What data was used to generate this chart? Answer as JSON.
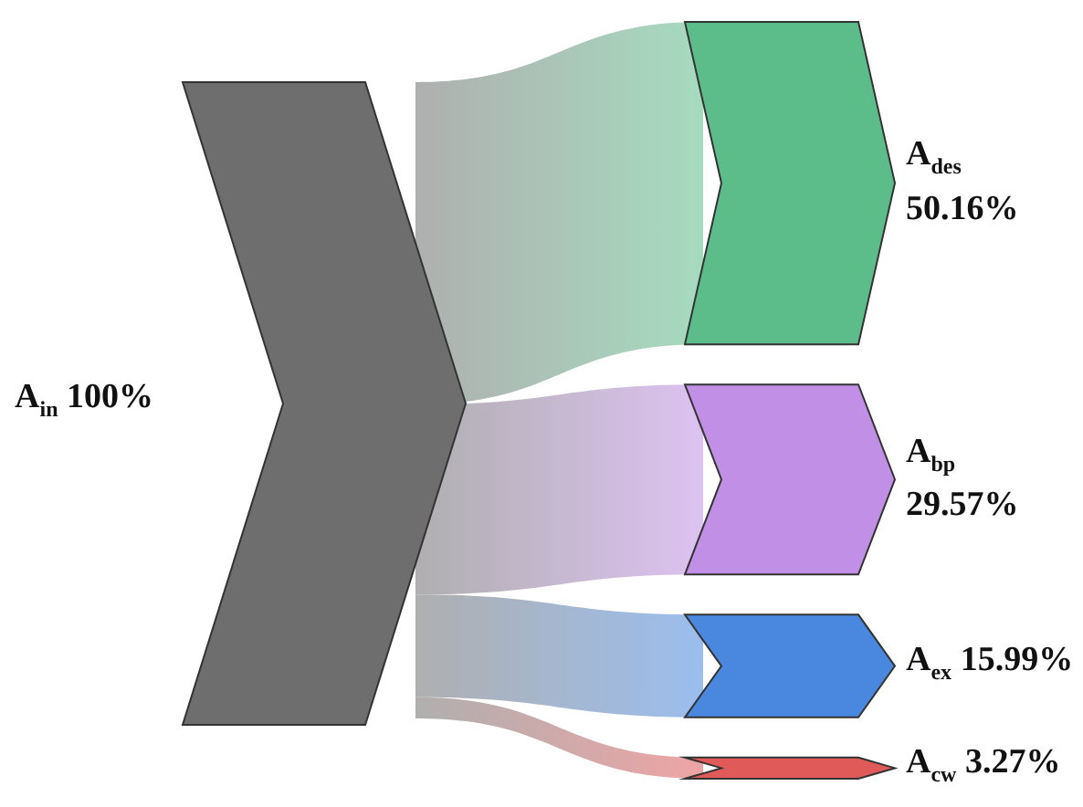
{
  "chart_data": {
    "type": "other",
    "categories": [
      "A$_{in}$",
      "A$_{des}$",
      "A$_{bp}$",
      "A$_{ex}$",
      "A$_{cw}$"
    ],
    "values": [
      100,
      50.16,
      29.57,
      15.99,
      3.27
    ],
    "value_labels": [
      "100%",
      "50.16%",
      "29.57%",
      "15.99%",
      "3.27%"
    ],
    "colors": [
      "#6e6e6e",
      "#5dbd8a",
      "#c190e6",
      "#4a88e0",
      "#e05a5a"
    ]
  }
}
